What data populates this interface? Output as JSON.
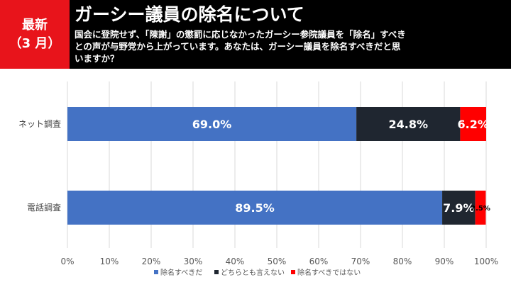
{
  "header": {
    "tag_line1": "最新",
    "tag_line2": "（3 月）",
    "title": "ガーシー議員の除名について",
    "question": "国会に登院せず、「陳謝」の懲罰に応じなかったガーシー参院議員を「除名」すべきとの声が与野党から上がっています。あなたは、ガーシー議員を除名すべきだと思いますか？"
  },
  "colors": {
    "header_bg": "#000000",
    "tag_bg": "#e8141b",
    "series": [
      "#4472c4",
      "#1f2630",
      "#ff0000"
    ]
  },
  "chart_data": {
    "type": "bar",
    "orientation": "horizontal",
    "stacked": true,
    "categories": [
      "ネット調査",
      "電話調査"
    ],
    "series": [
      {
        "name": "除名すべきだ",
        "values": [
          69.0,
          89.5
        ],
        "labels": [
          "69.0%",
          "89.5%"
        ]
      },
      {
        "name": "どちらとも言えない",
        "values": [
          24.8,
          7.9
        ],
        "labels": [
          "24.8%",
          "7.9%"
        ]
      },
      {
        "name": "除名すべきではない",
        "values": [
          6.2,
          2.5
        ],
        "labels": [
          "6.2%",
          "2.5%"
        ]
      }
    ],
    "xlim": [
      0,
      100
    ],
    "xticks": [
      "0%",
      "10%",
      "20%",
      "30%",
      "40%",
      "50%",
      "60%",
      "70%",
      "80%",
      "90%",
      "100%"
    ],
    "grid": true,
    "legend_position": "bottom"
  }
}
